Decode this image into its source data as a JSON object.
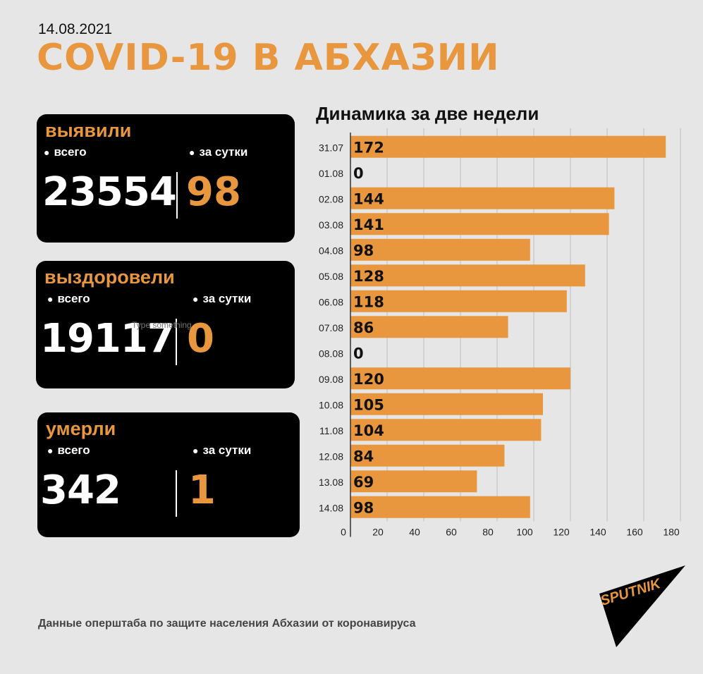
{
  "header": {
    "date": "14.08.2021",
    "title": "COVID-19 В АБХАЗИИ"
  },
  "cards": {
    "detected": {
      "title": "выявили",
      "total_label": "всего",
      "day_label": "за сутки",
      "total": "23554",
      "day": "98"
    },
    "recovered": {
      "title": "выздоровели",
      "total_label": "всего",
      "day_label": "за сутки",
      "total": "19117",
      "day": "0"
    },
    "died": {
      "title": "умерли",
      "total_label": "всего",
      "day_label": "за сутки",
      "total": "342",
      "day": "1"
    }
  },
  "hint": "Type something",
  "footer": "Данные оперштаба по защите населения Абхазии от коронавируса",
  "logo": {
    "text": "SPUTNIK"
  },
  "colors": {
    "accent": "#e8973f",
    "card_bg": "#000000",
    "page_bg": "#e6e6e6"
  },
  "chart_data": {
    "type": "bar",
    "orientation": "horizontal",
    "title": "Динамика за две недели",
    "categories": [
      "31.07",
      "01.08",
      "02.08",
      "03.08",
      "04.08",
      "05.08",
      "06.08",
      "07.08",
      "08.08",
      "09.08",
      "10.08",
      "11.08",
      "12.08",
      "13.08",
      "14.08"
    ],
    "values": [
      172,
      0,
      144,
      141,
      98,
      128,
      118,
      86,
      0,
      120,
      105,
      104,
      84,
      69,
      98
    ],
    "xlim": [
      0,
      180
    ],
    "xticks": [
      0,
      20,
      40,
      60,
      80,
      100,
      120,
      140,
      160,
      180
    ],
    "grid": true,
    "bar_color": "#e8973f"
  }
}
